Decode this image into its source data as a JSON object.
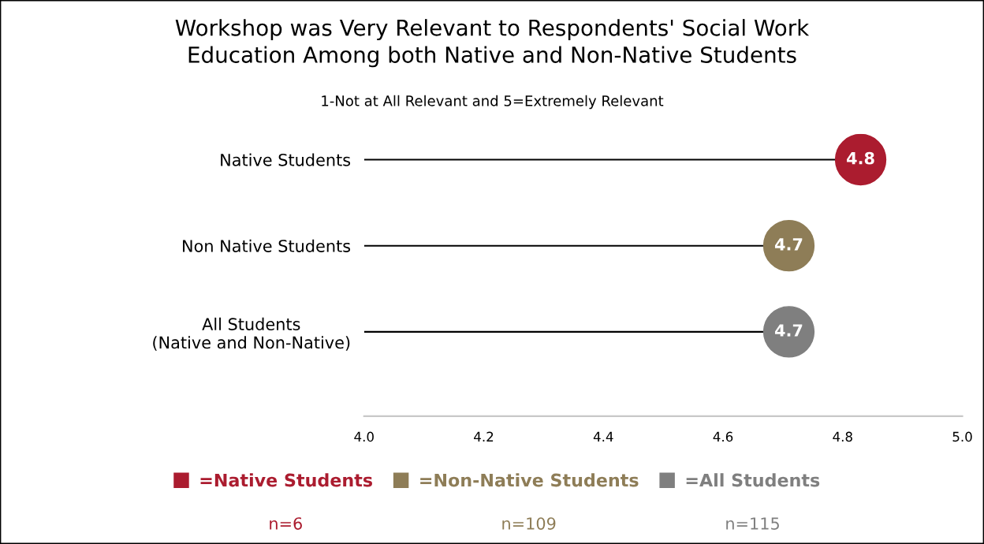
{
  "chart_data": {
    "type": "lollipop",
    "orientation": "horizontal",
    "title": "Workshop was Very Relevant to Respondents' Social Work\nEducation Among both Native and Non-Native Students",
    "subtitle": "1-Not at All Relevant and 5=Extremely Relevant",
    "categories": [
      "Native Students",
      "Non Native Students",
      "All Students\n(Native and Non-Native)"
    ],
    "series": [
      {
        "name": "=Native Students",
        "color": "#ab1c2f",
        "values": [
          4.83,
          null,
          null
        ],
        "value_labels": [
          "4.8",
          null,
          null
        ]
      },
      {
        "name": "=Non-Native Students",
        "color": "#8e7d57",
        "values": [
          null,
          4.71,
          null
        ],
        "value_labels": [
          null,
          "4.7",
          null
        ]
      },
      {
        "name": "=All Students",
        "color": "#7f7f7f",
        "values": [
          null,
          null,
          4.71
        ],
        "value_labels": [
          null,
          null,
          "4.7"
        ]
      }
    ],
    "xlim": [
      4.0,
      5.0
    ],
    "xticks": [
      {
        "value": 4.0,
        "label": "4.0"
      },
      {
        "value": 4.2,
        "label": "4.2"
      },
      {
        "value": 4.4,
        "label": "4.4"
      },
      {
        "value": 4.6,
        "label": "4.6"
      },
      {
        "value": 4.8,
        "label": "4.8"
      },
      {
        "value": 5.0,
        "label": "5.0"
      }
    ],
    "marker": "circle",
    "grid": false,
    "legend": "bottom",
    "annotations": [
      "n=6",
      "n=109",
      "n=115"
    ]
  }
}
